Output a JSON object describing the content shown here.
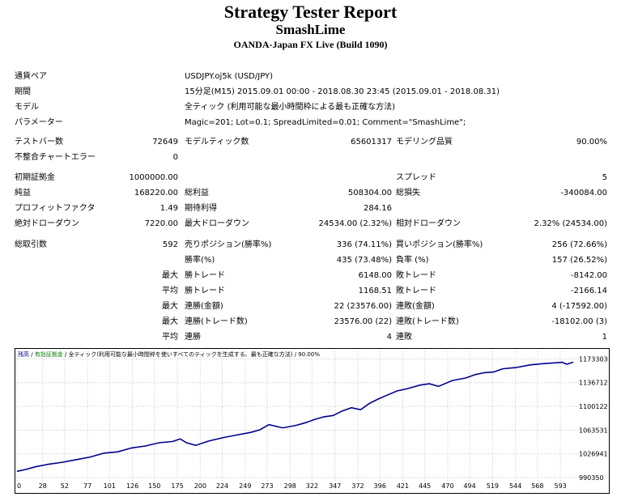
{
  "header": {
    "title": "Strategy Tester Report",
    "ea_name": "SmashLime",
    "server": "OANDA-Japan FX Live (Build 1090)"
  },
  "info": {
    "symbol_label": "通貨ペア",
    "symbol_value": "USDJPY.oj5k (USD/JPY)",
    "period_label": "期間",
    "period_value": "15分足(M15) 2015.09.01 00:00 - 2018.08.30 23:45 (2015.09.01 - 2018.08.31)",
    "model_label": "モデル",
    "model_value": "全ティック (利用可能な最小時間枠による最も正確な方法)",
    "params_label": "パラメーター",
    "params_value": "Magic=201; Lot=0.1; SpreadLimited=0.01; Comment=\"SmashLime\";"
  },
  "stats": {
    "bars_label": "テストバー数",
    "bars_value": "72649",
    "ticks_label": "モデルティック数",
    "ticks_value": "65601317",
    "quality_label": "モデリング品質",
    "quality_value": "90.00%",
    "mismatch_label": "不整合チャートエラー",
    "mismatch_value": "0",
    "deposit_label": "初期証拠金",
    "deposit_value": "1000000.00",
    "spread_label": "スプレッド",
    "spread_value": "5",
    "net_label": "純益",
    "net_value": "168220.00",
    "gross_profit_label": "総利益",
    "gross_profit_value": "508304.00",
    "gross_loss_label": "総損失",
    "gross_loss_value": "-340084.00",
    "pf_label": "プロフィットファクタ",
    "pf_value": "1.49",
    "expected_label": "期待利得",
    "expected_value": "284.16",
    "abs_dd_label": "絶対ドローダウン",
    "abs_dd_value": "7220.00",
    "max_dd_label": "最大ドローダウン",
    "max_dd_value": "24534.00 (2.32%)",
    "rel_dd_label": "相対ドローダウン",
    "rel_dd_value": "2.32% (24534.00)",
    "trades_label": "総取引数",
    "trades_value": "592",
    "short_label": "売りポジション(勝率%)",
    "short_value": "336 (74.11%)",
    "long_label": "買いポジション(勝率%)",
    "long_value": "256 (72.66%)",
    "win_label": "勝率(%)",
    "win_value": "435 (73.48%)",
    "loss_label": "負率 (%)",
    "loss_value": "157 (26.52%)",
    "max_word": "最大",
    "avg_word": "平均",
    "win_trade_label": "勝トレード",
    "loss_trade_label": "敗トレード",
    "largest_win": "6148.00",
    "largest_loss": "-8142.00",
    "avg_win": "1168.51",
    "avg_loss": "-2166.14",
    "cons_win_amt_label": "連勝(金額)",
    "cons_win_amt": "22 (23576.00)",
    "cons_loss_amt_label": "連敗(金額)",
    "cons_loss_amt": "4 (-17592.00)",
    "cons_win_trd_label": "連勝(トレード数)",
    "cons_win_trd": "23576.00 (22)",
    "cons_loss_trd_label": "連敗(トレード数)",
    "cons_loss_trd": "-18102.00 (3)",
    "avg_cons_win_label": "連勝",
    "avg_cons_win": "4",
    "avg_cons_loss_label": "連敗",
    "avg_cons_loss": "1"
  },
  "chart_legend": {
    "balance": "残高",
    "sep1": " / ",
    "equity": "有効証拠金",
    "sep2": " / ",
    "model": "全ティック(利用可能な最小時間枠を使いすべてのティックを生成する、最も正確な方法)",
    "sep3": " / ",
    "quality": "90.00%"
  },
  "chart_data": {
    "type": "line",
    "title": "",
    "xlabel": "",
    "ylabel": "",
    "x_ticks": [
      0,
      28,
      52,
      77,
      101,
      126,
      150,
      175,
      200,
      224,
      249,
      273,
      298,
      322,
      347,
      372,
      396,
      421,
      445,
      470,
      494,
      519,
      544,
      568,
      593
    ],
    "y_ticks": [
      990350,
      1026941,
      1063531,
      1100122,
      1136712,
      1173303
    ],
    "xlim": [
      0,
      607
    ],
    "ylim": [
      990350,
      1180000
    ],
    "grid": true,
    "series": [
      {
        "color": "#00008b",
        "x": [
          0,
          10,
          20,
          35,
          50,
          65,
          80,
          95,
          110,
          125,
          140,
          155,
          170,
          178,
          185,
          195,
          210,
          225,
          240,
          255,
          265,
          275,
          290,
          305,
          315,
          325,
          335,
          345,
          355,
          365,
          375,
          385,
          395,
          405,
          415,
          425,
          440,
          450,
          460,
          475,
          490,
          500,
          510,
          520,
          530,
          545,
          560,
          575,
          585,
          595,
          600,
          607
        ],
        "y": [
          1000000,
          1003000,
          1007000,
          1011000,
          1014000,
          1018000,
          1022000,
          1028000,
          1030000,
          1036000,
          1039000,
          1044000,
          1046000,
          1050000,
          1044000,
          1040000,
          1047000,
          1052000,
          1056000,
          1060000,
          1064000,
          1072000,
          1067000,
          1071000,
          1075000,
          1080000,
          1084000,
          1086000,
          1093000,
          1098000,
          1095000,
          1105000,
          1112000,
          1118000,
          1124000,
          1127000,
          1133000,
          1135000,
          1131000,
          1140000,
          1144000,
          1149000,
          1152000,
          1153000,
          1158000,
          1160000,
          1164000,
          1166000,
          1167000,
          1168000,
          1165000,
          1168220
        ]
      }
    ]
  }
}
